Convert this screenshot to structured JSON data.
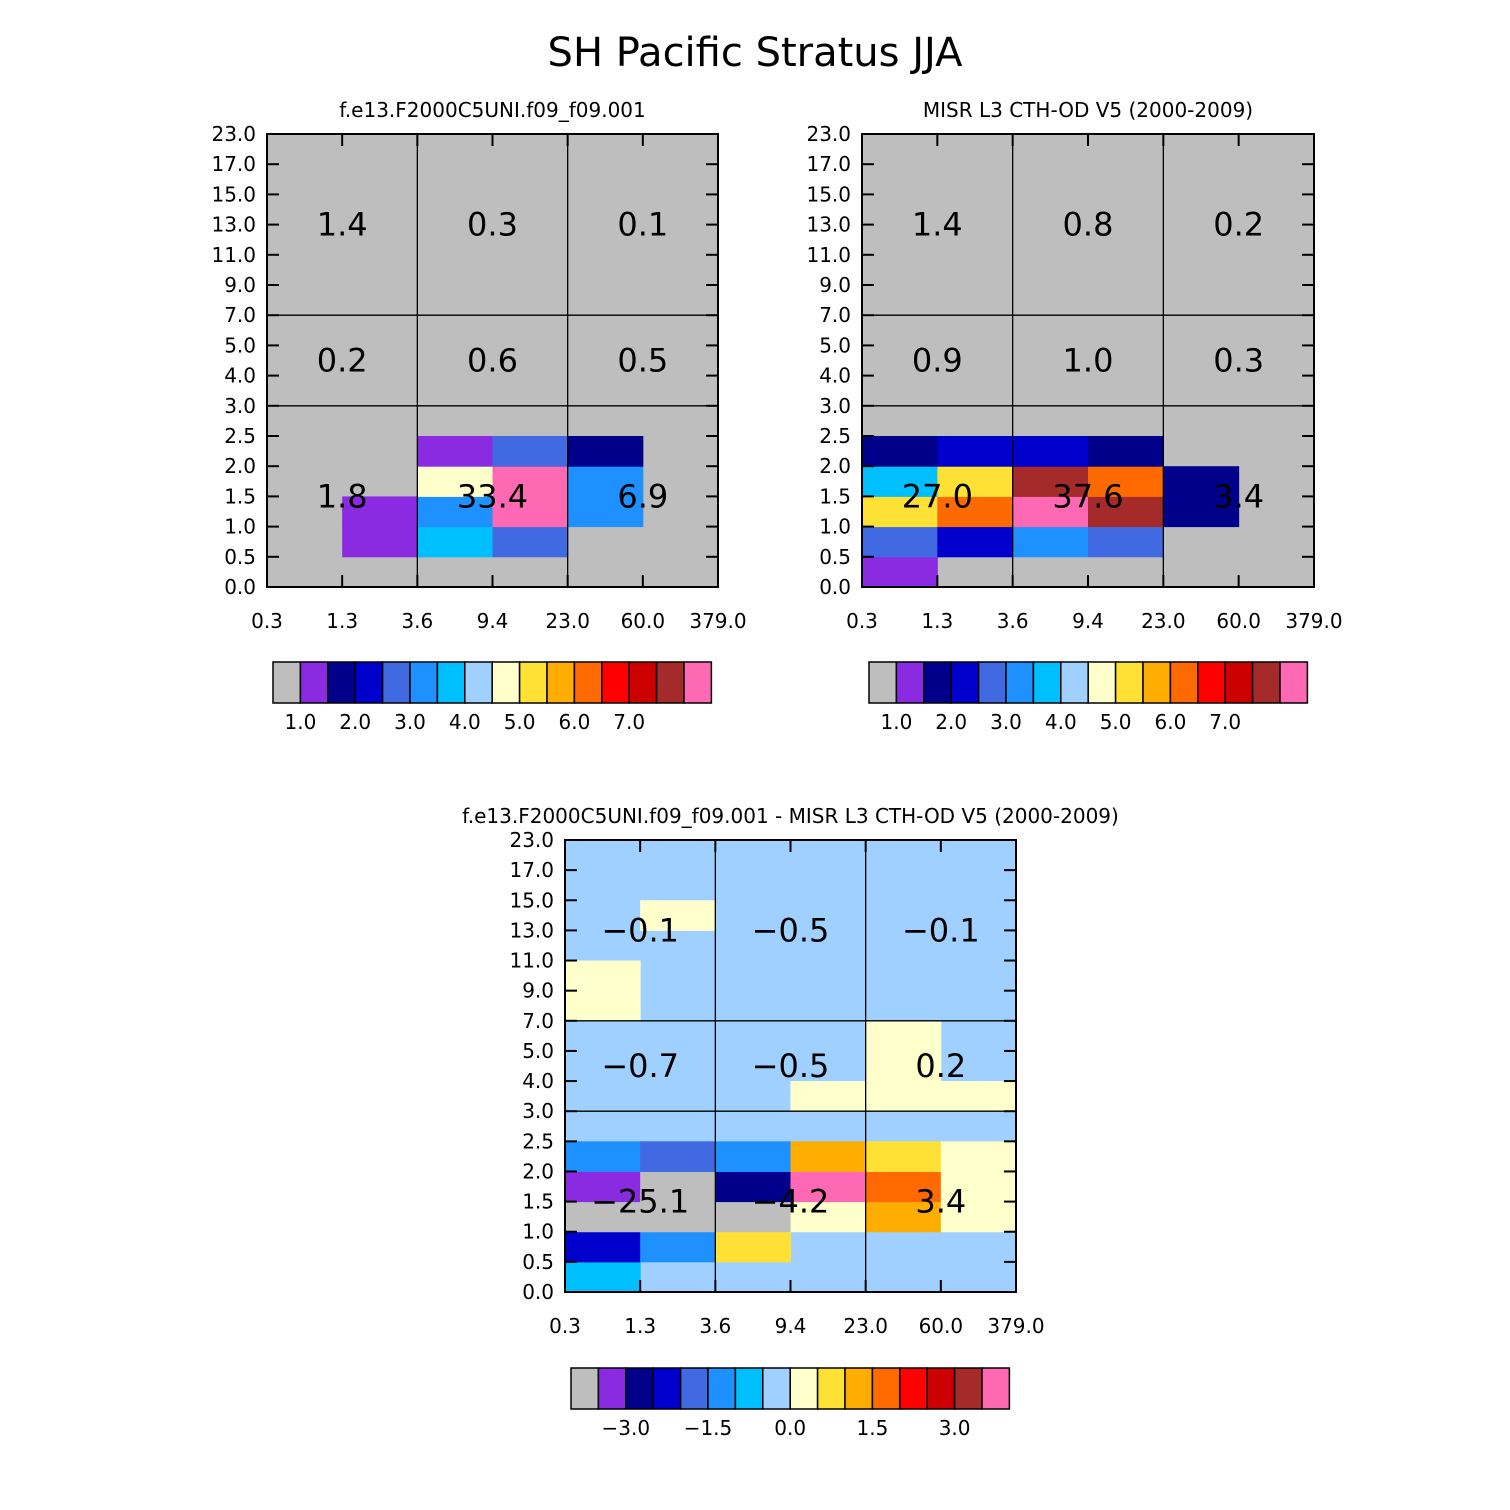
{
  "title": "SH Pacific Stratus JJA",
  "bin_colors": [
    "#bebebe",
    "#8a2be2",
    "#00008b",
    "#0000cd",
    "#4169e1",
    "#1e90ff",
    "#00bfff",
    "#a0d0ff",
    "#ffffcc",
    "#ffe135",
    "#ffad00",
    "#ff6a00",
    "#ff0000",
    "#cd0000",
    "#a52a2a",
    "#ff69b4"
  ],
  "chart_data": [
    {
      "type": "heatmap",
      "title": "f.e13.F2000C5UNI.f09_f09.001",
      "x_tick_labels": [
        "0.3",
        "1.3",
        "3.6",
        "9.4",
        "23.0",
        "60.0",
        "379.0"
      ],
      "y_tick_labels": [
        "0.0",
        "0.5",
        "1.0",
        "1.5",
        "2.0",
        "2.5",
        "3.0",
        "4.0",
        "5.0",
        "7.0",
        "9.0",
        "11.0",
        "13.0",
        "15.0",
        "17.0",
        "23.0"
      ],
      "background_bin": 0,
      "cells": [
        {
          "c": 1,
          "r": 1,
          "bin": 1
        },
        {
          "c": 1,
          "r": 2,
          "bin": 1
        },
        {
          "c": 2,
          "r": 1,
          "bin": 6
        },
        {
          "c": 2,
          "r": 2,
          "bin": 5
        },
        {
          "c": 2,
          "r": 3,
          "bin": 8
        },
        {
          "c": 2,
          "r": 4,
          "bin": 1
        },
        {
          "c": 3,
          "r": 1,
          "bin": 4
        },
        {
          "c": 3,
          "r": 2,
          "bin": 15
        },
        {
          "c": 3,
          "r": 3,
          "bin": 15
        },
        {
          "c": 3,
          "r": 4,
          "bin": 4
        },
        {
          "c": 4,
          "r": 2,
          "bin": 5
        },
        {
          "c": 4,
          "r": 3,
          "bin": 5
        },
        {
          "c": 4,
          "r": 4,
          "bin": 2
        }
      ],
      "region_values": [
        {
          "label": "1.4",
          "c": 0.5,
          "r": 12
        },
        {
          "label": "0.3",
          "c": 2.5,
          "r": 12
        },
        {
          "label": "0.1",
          "c": 4.5,
          "r": 12
        },
        {
          "label": "0.2",
          "c": 0.5,
          "r": 7.5
        },
        {
          "label": "0.6",
          "c": 2.5,
          "r": 7.5
        },
        {
          "label": "0.5",
          "c": 4.5,
          "r": 7.5
        },
        {
          "label": "1.8",
          "c": 0.5,
          "r": 3
        },
        {
          "label": "33.4",
          "c": 2.5,
          "r": 3
        },
        {
          "label": "6.9",
          "c": 4.5,
          "r": 3
        }
      ],
      "colorbar": {
        "labels": [
          "1.0",
          "2.0",
          "3.0",
          "4.0",
          "5.0",
          "6.0",
          "7.0"
        ],
        "label_after_box": [
          1,
          3,
          5,
          7,
          9,
          11,
          13
        ]
      }
    },
    {
      "type": "heatmap",
      "title": "MISR L3 CTH-OD V5 (2000-2009)",
      "x_tick_labels": [
        "0.3",
        "1.3",
        "3.6",
        "9.4",
        "23.0",
        "60.0",
        "379.0"
      ],
      "y_tick_labels": [
        "0.0",
        "0.5",
        "1.0",
        "1.5",
        "2.0",
        "2.5",
        "3.0",
        "4.0",
        "5.0",
        "7.0",
        "9.0",
        "11.0",
        "13.0",
        "15.0",
        "17.0",
        "23.0"
      ],
      "background_bin": 0,
      "cells": [
        {
          "c": 0,
          "r": 0,
          "bin": 1
        },
        {
          "c": 0,
          "r": 1,
          "bin": 4
        },
        {
          "c": 0,
          "r": 2,
          "bin": 9
        },
        {
          "c": 0,
          "r": 3,
          "bin": 6
        },
        {
          "c": 0,
          "r": 4,
          "bin": 2
        },
        {
          "c": 1,
          "r": 1,
          "bin": 3
        },
        {
          "c": 1,
          "r": 2,
          "bin": 11
        },
        {
          "c": 1,
          "r": 3,
          "bin": 9
        },
        {
          "c": 1,
          "r": 4,
          "bin": 3
        },
        {
          "c": 2,
          "r": 1,
          "bin": 5
        },
        {
          "c": 2,
          "r": 2,
          "bin": 15
        },
        {
          "c": 2,
          "r": 3,
          "bin": 14
        },
        {
          "c": 2,
          "r": 4,
          "bin": 3
        },
        {
          "c": 3,
          "r": 1,
          "bin": 4
        },
        {
          "c": 3,
          "r": 2,
          "bin": 14
        },
        {
          "c": 3,
          "r": 3,
          "bin": 11
        },
        {
          "c": 3,
          "r": 4,
          "bin": 2
        },
        {
          "c": 4,
          "r": 2,
          "bin": 2
        },
        {
          "c": 4,
          "r": 3,
          "bin": 2
        }
      ],
      "region_values": [
        {
          "label": "1.4",
          "c": 0.5,
          "r": 12
        },
        {
          "label": "0.8",
          "c": 2.5,
          "r": 12
        },
        {
          "label": "0.2",
          "c": 4.5,
          "r": 12
        },
        {
          "label": "0.9",
          "c": 0.5,
          "r": 7.5
        },
        {
          "label": "1.0",
          "c": 2.5,
          "r": 7.5
        },
        {
          "label": "0.3",
          "c": 4.5,
          "r": 7.5
        },
        {
          "label": "27.0",
          "c": 0.5,
          "r": 3
        },
        {
          "label": "37.6",
          "c": 2.5,
          "r": 3
        },
        {
          "label": "3.4",
          "c": 4.5,
          "r": 3
        }
      ],
      "colorbar": {
        "labels": [
          "1.0",
          "2.0",
          "3.0",
          "4.0",
          "5.0",
          "6.0",
          "7.0"
        ],
        "label_after_box": [
          1,
          3,
          5,
          7,
          9,
          11,
          13
        ]
      }
    },
    {
      "type": "heatmap",
      "title": "f.e13.F2000C5UNI.f09_f09.001 - MISR L3 CTH-OD V5 (2000-2009)",
      "x_tick_labels": [
        "0.3",
        "1.3",
        "3.6",
        "9.4",
        "23.0",
        "60.0",
        "379.0"
      ],
      "y_tick_labels": [
        "0.0",
        "0.5",
        "1.0",
        "1.5",
        "2.0",
        "2.5",
        "3.0",
        "4.0",
        "5.0",
        "7.0",
        "9.0",
        "11.0",
        "13.0",
        "15.0",
        "17.0",
        "23.0"
      ],
      "background_bin": 7,
      "cells": [
        {
          "c": 0,
          "r": 0,
          "bin": 6
        },
        {
          "c": 0,
          "r": 1,
          "bin": 3
        },
        {
          "c": 0,
          "r": 2,
          "bin": 0
        },
        {
          "c": 0,
          "r": 3,
          "bin": 1
        },
        {
          "c": 0,
          "r": 4,
          "bin": 5
        },
        {
          "c": 1,
          "r": 1,
          "bin": 5
        },
        {
          "c": 1,
          "r": 2,
          "bin": 0
        },
        {
          "c": 1,
          "r": 3,
          "bin": 0
        },
        {
          "c": 1,
          "r": 4,
          "bin": 4
        },
        {
          "c": 2,
          "r": 1,
          "bin": 9
        },
        {
          "c": 2,
          "r": 2,
          "bin": 0
        },
        {
          "c": 2,
          "r": 3,
          "bin": 2
        },
        {
          "c": 2,
          "r": 4,
          "bin": 5
        },
        {
          "c": 3,
          "r": 2,
          "bin": 8
        },
        {
          "c": 3,
          "r": 3,
          "bin": 15
        },
        {
          "c": 3,
          "r": 4,
          "bin": 10
        },
        {
          "c": 4,
          "r": 2,
          "bin": 10
        },
        {
          "c": 4,
          "r": 3,
          "bin": 11
        },
        {
          "c": 4,
          "r": 4,
          "bin": 9
        },
        {
          "c": 5,
          "r": 2,
          "bin": 8
        },
        {
          "c": 5,
          "r": 3,
          "bin": 8
        },
        {
          "c": 5,
          "r": 4,
          "bin": 8
        },
        {
          "c": 3,
          "r": 6,
          "bin": 8
        },
        {
          "c": 4,
          "r": 6,
          "bin": 8
        },
        {
          "c": 5,
          "r": 6,
          "bin": 8
        },
        {
          "c": 4,
          "r": 7,
          "bin": 8
        },
        {
          "c": 4,
          "r": 8,
          "bin": 8
        },
        {
          "c": 0,
          "r": 9,
          "bin": 8
        },
        {
          "c": 0,
          "r": 10,
          "bin": 8
        },
        {
          "c": 1,
          "r": 12,
          "bin": 8
        }
      ],
      "region_values": [
        {
          "label": "−0.1",
          "c": 0.5,
          "r": 12
        },
        {
          "label": "−0.5",
          "c": 2.5,
          "r": 12
        },
        {
          "label": "−0.1",
          "c": 4.5,
          "r": 12
        },
        {
          "label": "−0.7",
          "c": 0.5,
          "r": 7.5
        },
        {
          "label": "−0.5",
          "c": 2.5,
          "r": 7.5
        },
        {
          "label": "0.2",
          "c": 4.5,
          "r": 7.5
        },
        {
          "label": "−25.1",
          "c": 0.5,
          "r": 3
        },
        {
          "label": "−4.2",
          "c": 2.5,
          "r": 3
        },
        {
          "label": "3.4",
          "c": 4.5,
          "r": 3
        }
      ],
      "colorbar": {
        "labels": [
          "−3.0",
          "−1.5",
          "0.0",
          "1.5",
          "3.0"
        ],
        "label_after_box": [
          2,
          5,
          8,
          11,
          14
        ]
      }
    }
  ]
}
